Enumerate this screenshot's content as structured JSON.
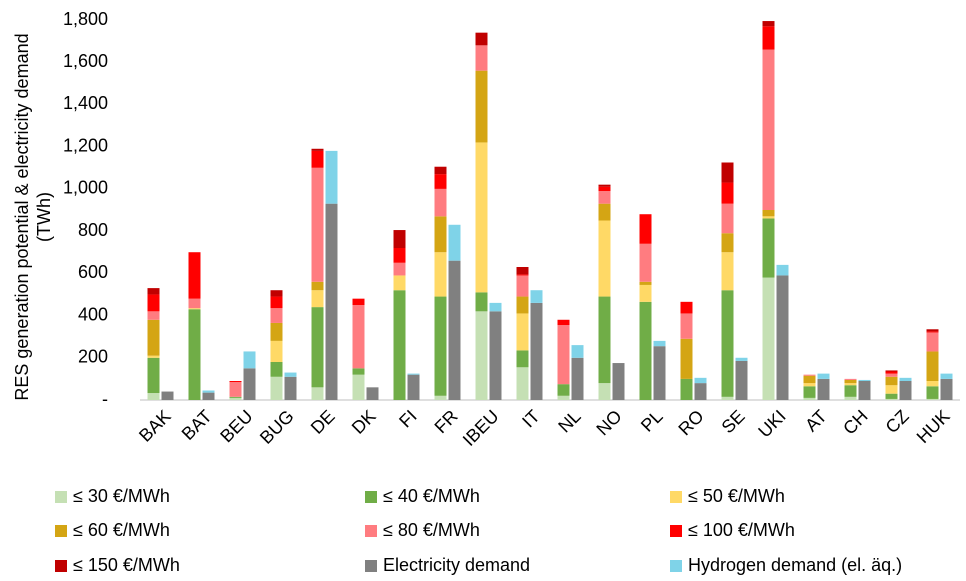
{
  "chart_data": {
    "type": "stacked-bar-pair",
    "y_label": "RES generation potential & electricity demand (TWh)",
    "categories": [
      "BAK",
      "BAT",
      "BEU",
      "BUG",
      "DE",
      "DK",
      "FI",
      "FR",
      "IBEU",
      "IT",
      "NL",
      "NO",
      "PL",
      "RO",
      "SE",
      "UKI",
      "AT",
      "CH",
      "CZ",
      "HUK"
    ],
    "ylim": [
      0,
      1800
    ],
    "yticks": [
      {
        "value": 0,
        "label": "-"
      },
      200,
      400,
      600,
      800,
      {
        "value": 1000,
        "label": "1,000"
      },
      {
        "value": 1200,
        "label": "1,200"
      },
      {
        "value": 1400,
        "label": "1,400"
      },
      {
        "value": 1600,
        "label": "1,600"
      },
      {
        "value": 1800,
        "label": "1,800"
      }
    ],
    "series": [
      {
        "name": "≤ 30 €/MWh",
        "color": "#c5e0b4",
        "stack": "potential",
        "values": [
          33,
          0,
          10,
          110,
          60,
          120,
          0,
          20,
          420,
          155,
          20,
          80,
          0,
          0,
          15,
          580,
          10,
          15,
          5,
          5
        ]
      },
      {
        "name": "≤ 40 €/MWh",
        "color": "#70ad47",
        "stack": "potential",
        "values": [
          167,
          430,
          5,
          70,
          380,
          30,
          520,
          470,
          90,
          80,
          55,
          410,
          465,
          100,
          505,
          280,
          55,
          55,
          25,
          60
        ]
      },
      {
        "name": "≤ 50 €/MWh",
        "color": "#ffd966",
        "stack": "potential",
        "values": [
          10,
          5,
          0,
          100,
          80,
          0,
          70,
          210,
          710,
          175,
          0,
          360,
          80,
          0,
          180,
          10,
          15,
          10,
          40,
          25
        ]
      },
      {
        "name": "≤ 60 €/MWh",
        "color": "#d4a514",
        "stack": "potential",
        "values": [
          170,
          0,
          0,
          85,
          40,
          0,
          0,
          170,
          340,
          80,
          0,
          80,
          15,
          190,
          90,
          30,
          35,
          15,
          40,
          140
        ]
      },
      {
        "name": "≤ 80 €/MWh",
        "color": "#ff7c80",
        "stack": "potential",
        "values": [
          40,
          45,
          70,
          70,
          540,
          300,
          60,
          130,
          120,
          100,
          280,
          60,
          180,
          120,
          140,
          760,
          5,
          5,
          15,
          90
        ]
      },
      {
        "name": "≤ 100 €/MWh",
        "color": "#ff0000",
        "stack": "potential",
        "values": [
          80,
          220,
          5,
          55,
          80,
          30,
          70,
          70,
          0,
          5,
          25,
          20,
          140,
          55,
          100,
          110,
          0,
          0,
          10,
          5
        ]
      },
      {
        "name": "≤ 150 €/MWh",
        "color": "#c00000",
        "stack": "potential",
        "values": [
          30,
          0,
          0,
          30,
          10,
          0,
          85,
          35,
          60,
          35,
          0,
          10,
          0,
          0,
          95,
          25,
          0,
          0,
          5,
          10
        ]
      },
      {
        "name": "Electricity demand",
        "color": "#808080",
        "stack": "demand",
        "values": [
          40,
          35,
          150,
          110,
          930,
          60,
          120,
          660,
          420,
          460,
          200,
          175,
          255,
          80,
          185,
          590,
          100,
          90,
          90,
          100
        ]
      },
      {
        "name": "Hydrogen demand (el. äq.)",
        "color": "#7fd3e8",
        "stack": "demand",
        "values": [
          0,
          10,
          80,
          20,
          250,
          0,
          5,
          170,
          40,
          60,
          60,
          0,
          25,
          25,
          15,
          50,
          25,
          5,
          15,
          25
        ]
      }
    ]
  }
}
